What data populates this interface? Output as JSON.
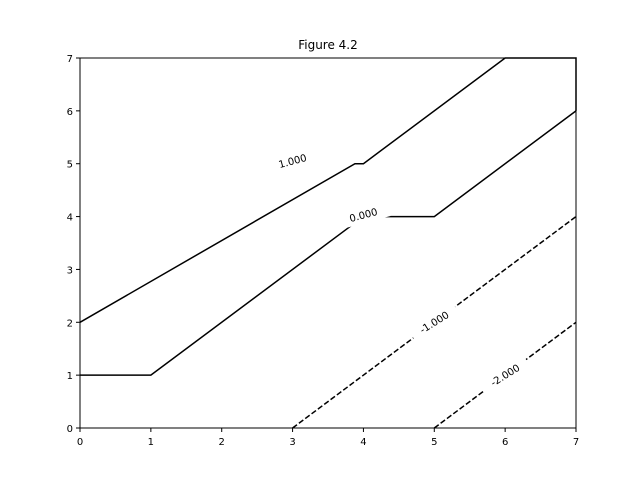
{
  "chart_data": {
    "type": "line",
    "title": "Figure 4.2",
    "xlabel": "",
    "ylabel": "",
    "xlim": [
      0,
      7
    ],
    "ylim": [
      0,
      7
    ],
    "xticks": [
      "0",
      "1",
      "2",
      "3",
      "4",
      "5",
      "6",
      "7"
    ],
    "yticks": [
      "0",
      "1",
      "2",
      "3",
      "4",
      "5",
      "6",
      "7"
    ],
    "grid": false,
    "contours": [
      {
        "level": "1.000",
        "style": "solid",
        "color": "#000000",
        "points": [
          [
            0,
            2
          ],
          [
            3.88,
            5
          ],
          [
            4,
            5
          ],
          [
            6,
            7
          ],
          [
            6.96,
            7
          ],
          [
            7,
            7
          ],
          [
            7,
            6
          ]
        ],
        "label_at": [
          3,
          5.05
        ],
        "label_angle": -15
      },
      {
        "level": "0.000",
        "style": "solid",
        "color": "#000000",
        "points": [
          [
            0,
            1
          ],
          [
            1,
            1
          ],
          [
            4,
            4
          ],
          [
            5,
            4
          ],
          [
            7,
            6
          ]
        ],
        "label_at": [
          4,
          4.03
        ],
        "label_angle": -15
      },
      {
        "level": "-1.000",
        "style": "dashed",
        "color": "#000000",
        "points": [
          [
            3,
            0
          ],
          [
            7,
            4
          ]
        ],
        "label_at": [
          5,
          2
        ],
        "label_angle": -32
      },
      {
        "level": "-2.000",
        "style": "dashed",
        "color": "#000000",
        "points": [
          [
            5,
            0
          ],
          [
            7,
            2
          ]
        ],
        "label_at": [
          6,
          1
        ],
        "label_angle": -32
      }
    ]
  }
}
